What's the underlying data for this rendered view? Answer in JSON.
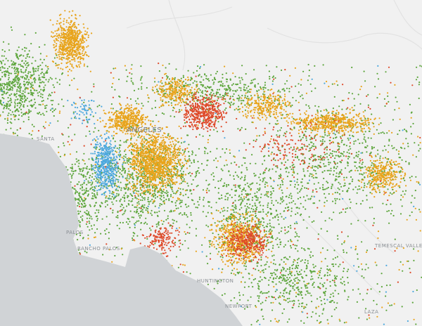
{
  "map": {
    "labels": {
      "city": "ANGELES",
      "palos": "PALOS",
      "rancho": "RANCHO PALOS",
      "huntington": "HUNTINGTON",
      "newport": "NEWPORT",
      "temescal": "TEMESCAL VALLEY",
      "plaza": "LAZA",
      "santa": "SANTA"
    }
  }
}
